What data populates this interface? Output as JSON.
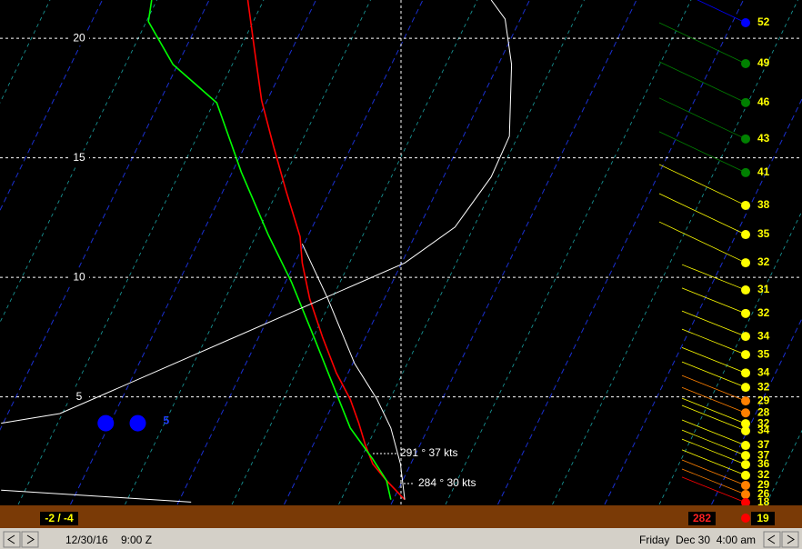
{
  "chart_data": {
    "type": "skew-t",
    "xlim": [
      -40.2,
      34.9
    ],
    "ylim": [
      0.5,
      21.6
    ],
    "xticks": [
      -40,
      -30,
      -20,
      -10,
      0,
      10,
      20
    ],
    "yticks": [
      5,
      10,
      15,
      20
    ],
    "grid": true,
    "series": [
      {
        "color": "#ff0000",
        "x": [
          -17.0,
          -16.3,
          -15.7,
          -14.6,
          -13.4,
          -12.1,
          -11.9,
          -11.2,
          -10.0,
          -8.7,
          -7.4,
          -6.6,
          -6.0,
          -5.3,
          -4.0,
          -2.3
        ],
        "values": [
          21.6,
          19.3,
          17.4,
          15.5,
          13.6,
          11.7,
          10.6,
          9.1,
          7.5,
          6.0,
          4.9,
          3.9,
          3.0,
          2.2,
          1.5,
          0.7
        ]
      },
      {
        "color": "#00ff00",
        "x": [
          -26.0,
          -26.3,
          -24.0,
          -19.9,
          -17.6,
          -15.1,
          -12.9,
          -10.8,
          -9.1,
          -7.4,
          -5.3,
          -4.0,
          -3.6
        ],
        "values": [
          21.6,
          20.7,
          18.9,
          17.3,
          14.4,
          11.8,
          9.8,
          7.5,
          5.6,
          3.7,
          2.4,
          1.5,
          0.7
        ]
      },
      {
        "color": "#ffffff",
        "x": [
          5.8,
          7.1,
          7.7,
          7.5,
          5.8,
          2.4,
          -2.3,
          -34.6,
          -40.1
        ],
        "values": [
          21.6,
          20.8,
          18.9,
          15.9,
          14.2,
          12.1,
          10.6,
          4.3,
          3.9
        ]
      },
      {
        "color": "#ffffff",
        "x": [
          -11.9,
          -9.5,
          -7.0,
          -4.9,
          -3.6,
          -2.7,
          -2.3
        ],
        "values": [
          11.4,
          9.1,
          6.4,
          4.9,
          3.7,
          2.2,
          0.7
        ]
      },
      {
        "color": "#ffffff",
        "x": [
          -40.1,
          -22.3
        ],
        "values": [
          1.1,
          0.6
        ]
      }
    ],
    "markers": {
      "color": "#0000ff",
      "x": [
        -30.3,
        -27.3
      ],
      "values": [
        3.9,
        3.9
      ],
      "label": "5"
    },
    "winds": {
      "heights": [
        20.65,
        18.94,
        17.31,
        15.79,
        14.38,
        13.01,
        11.79,
        10.61,
        9.47,
        8.49,
        7.53,
        6.77,
        6.0,
        5.4,
        4.83,
        4.33,
        3.88,
        3.58,
        2.97,
        2.55,
        2.17,
        1.72,
        1.3,
        0.92,
        0.58
      ],
      "speeds": [
        52,
        49,
        46,
        43,
        41,
        38,
        35,
        32,
        31,
        32,
        34,
        35,
        34,
        32,
        29,
        28,
        32,
        34,
        37,
        37,
        36,
        32,
        29,
        26,
        18
      ],
      "colors": [
        "#0000ff",
        "#008000",
        "#008000",
        "#008000",
        "#008000",
        "#ffff00",
        "#ffff00",
        "#ffff00",
        "#ffff00",
        "#ffff00",
        "#ffff00",
        "#ffff00",
        "#ffff00",
        "#ffff00",
        "#ff8000",
        "#ff8000",
        "#ffff00",
        "#ffff00",
        "#ffff00",
        "#ffff00",
        "#ffff00",
        "#ffff00",
        "#ff8000",
        "#ff8000",
        "#ff0000"
      ]
    },
    "annotations": [
      "291 ° 37 kts",
      "284 ° 30 kts"
    ]
  },
  "surface": {
    "temp_dew": "-2 / -4",
    "direction": 282,
    "speed": 19
  },
  "status_bar": {
    "date": "12/30/16",
    "time": "9:00 Z",
    "day": "Friday",
    "local": "Dec 30  4:00 am"
  }
}
